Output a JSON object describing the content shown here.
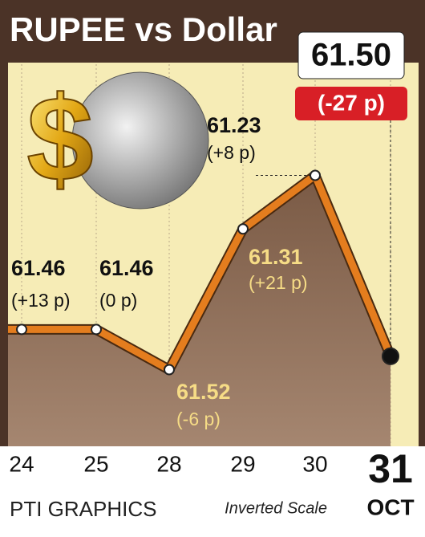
{
  "chart_data": {
    "type": "line",
    "title": "RUPEE vs Dollar",
    "categories": [
      "24",
      "25",
      "28",
      "29",
      "30",
      "31"
    ],
    "values": [
      61.46,
      61.46,
      61.52,
      61.31,
      61.23,
      61.5
    ],
    "value_labels": [
      "61.46",
      "61.46",
      "61.52",
      "61.31",
      "61.23",
      "61.50"
    ],
    "change_labels": [
      "(+13 p)",
      "(0 p)",
      "(-6 p)",
      "(+21 p)",
      "(+8 p)",
      "(-27 p)"
    ],
    "month": "OCT",
    "ylim": [
      61.1,
      61.65
    ],
    "inverted": true,
    "scale_note": "Inverted Scale",
    "color": "#e47d1e",
    "area_color": "#8c6b53",
    "source": "PTI GRAPHICS"
  }
}
